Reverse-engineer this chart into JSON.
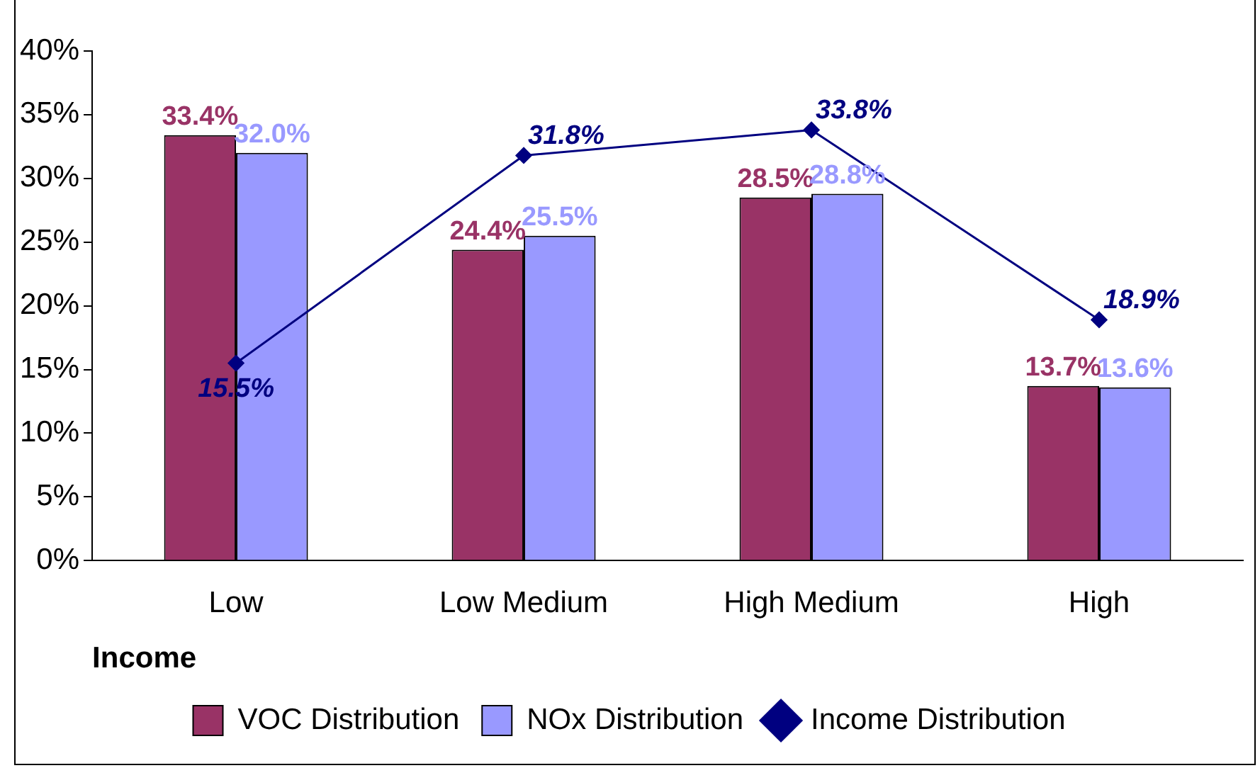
{
  "chart_data": {
    "type": "bar",
    "xlabel": "Income",
    "categories": [
      "Low",
      "Low Medium",
      "High Medium",
      "High"
    ],
    "series": [
      {
        "name": "VOC Distribution",
        "color": "#993366",
        "values": [
          33.4,
          24.4,
          28.5,
          13.7
        ],
        "value_labels": [
          "33.4%",
          "24.4%",
          "28.5%",
          "13.7%"
        ]
      },
      {
        "name": "NOx Distribution",
        "color": "#9999ff",
        "values": [
          32.0,
          25.5,
          28.8,
          13.6
        ],
        "value_labels": [
          "32.0%",
          "25.5%",
          "28.8%",
          "13.6%"
        ]
      },
      {
        "name": "Income Distribution",
        "type": "line",
        "color": "#000080",
        "marker": "diamond",
        "values": [
          15.5,
          31.8,
          33.8,
          18.9
        ],
        "value_labels": [
          "15.5%",
          "31.8%",
          "33.8%",
          "18.9%"
        ]
      }
    ],
    "ylim": [
      0,
      40
    ],
    "yticks": [
      {
        "value": 0,
        "label": "0%"
      },
      {
        "value": 5,
        "label": "5%"
      },
      {
        "value": 10,
        "label": "10%"
      },
      {
        "value": 15,
        "label": "15%"
      },
      {
        "value": 20,
        "label": "20%"
      },
      {
        "value": 25,
        "label": "25%"
      },
      {
        "value": 30,
        "label": "30%"
      },
      {
        "value": 35,
        "label": "35%"
      },
      {
        "value": 40,
        "label": "40%"
      }
    ],
    "grid": false,
    "legend": "bottom"
  }
}
